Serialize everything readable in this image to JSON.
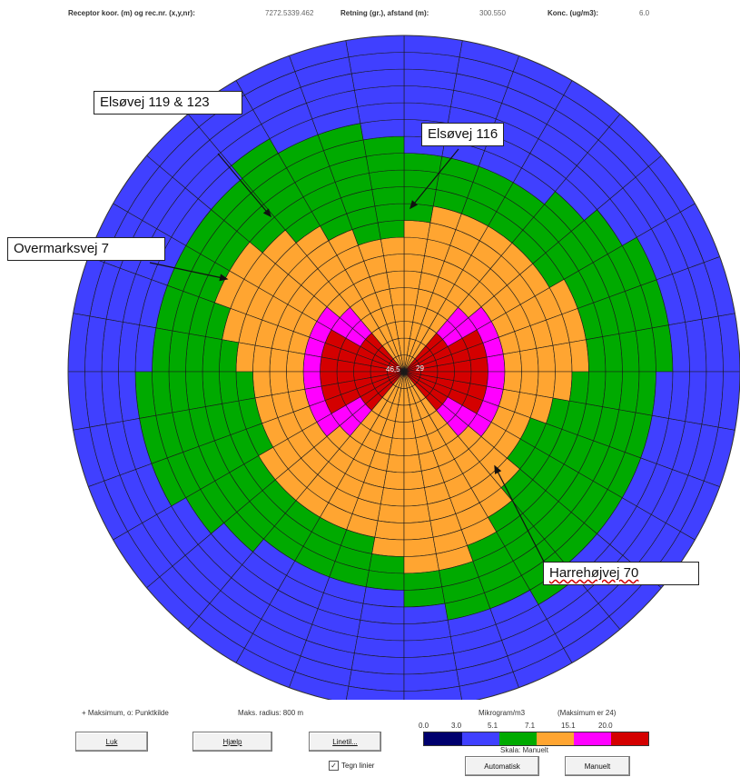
{
  "infobar": {
    "receptor_label": "Receptor koor. (m) og rec.nr. (x,y,nr):",
    "receptor_value": "7272.5339.462",
    "direction_label": "Retning (gr.), afstand (m):",
    "direction_value": "300.550",
    "conc_label": "Konc. (ug/m3):",
    "conc_value": "6.0"
  },
  "rose": {
    "rings": 20,
    "sectors": 36,
    "center_labels": [
      "46,5",
      "29"
    ],
    "colors": {
      "dark_blue": "#00006e",
      "blue": "#4040ff",
      "green": "#00aa00",
      "orange": "#ffa531",
      "magenta": "#ff00ff",
      "red": "#d40000",
      "grid": "#1a1a1a"
    }
  },
  "callouts": {
    "elsovej_119": "Elsøvej 119 & 123",
    "elsovej_116": "Elsøvej 116",
    "overmarksvej": "Overmarksvej 7",
    "harrehojvej": "Harrehøjvej 70"
  },
  "bottom": {
    "maximum_note": "+ Maksimum, o: Punktkilde",
    "max_radius": "Maks. radius: 800 m",
    "unit": "Mikrogram/m3",
    "max_note": "(Maksimum er 24)",
    "scale_label": "Skala: Manuelt",
    "close_button": "Luk",
    "help_button": "Hjælp",
    "lines_button": "Linetil...",
    "draw_lines_checkbox": "Tegn linier",
    "auto_button": "Automatisk",
    "manual_button": "Manuelt",
    "legend_ticks": [
      "0.0",
      "3.0",
      "5.1",
      "7.1",
      "15.1",
      "20.0"
    ],
    "legend_colors": [
      "#00006e",
      "#4040ff",
      "#00aa00",
      "#ffa531",
      "#ff00ff",
      "#d40000"
    ]
  }
}
